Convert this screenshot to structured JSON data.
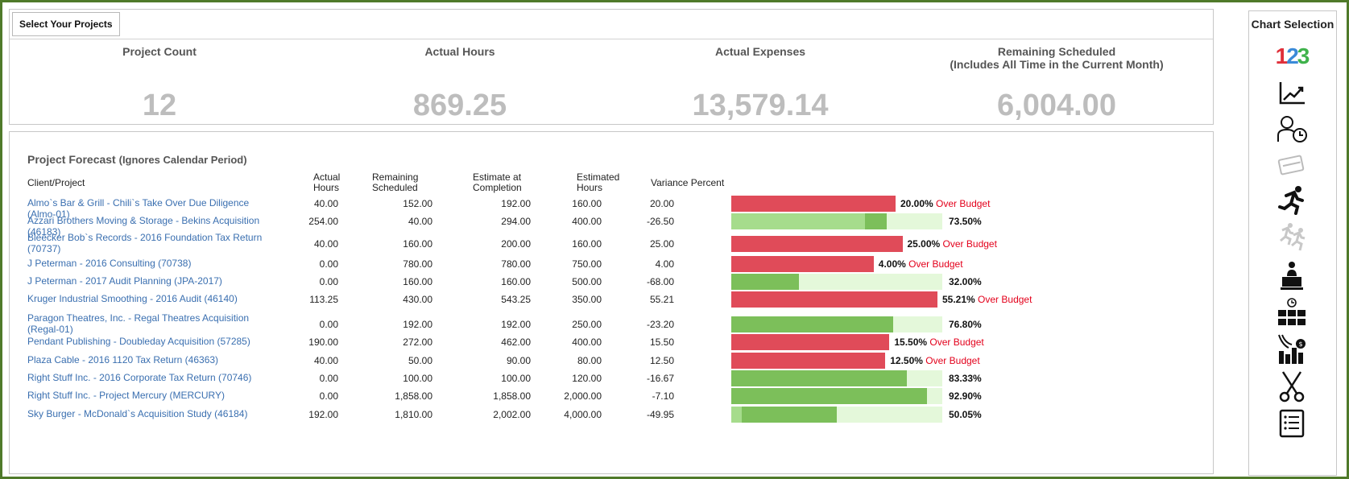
{
  "summary": {
    "select_button": "Select Your Projects",
    "metrics": [
      {
        "label": "Project Count",
        "value": "12"
      },
      {
        "label": "Actual Hours",
        "value": "869.25"
      },
      {
        "label": "Actual Expenses",
        "value": "13,579.14"
      },
      {
        "label": "Remaining Scheduled\n(Includes All Time in the Current Month)",
        "value": "6,004.00"
      }
    ]
  },
  "forecast": {
    "title": "Project Forecast",
    "subtitle": "(Ignores Calendar Period)",
    "headers": {
      "client_project": "Client/Project",
      "actual_hours": "Actual\nHours",
      "remaining_scheduled": "Remaining\nScheduled",
      "estimate_completion": "Estimate at\nCompletion",
      "estimated_hours": "Estimated\nHours",
      "variance_percent": "Variance Percent"
    },
    "over_budget_label": "Over Budget",
    "rows": [
      {
        "name": "Almo`s Bar & Grill - Chili`s Take Over Due Diligence (Almo-01)",
        "actual": "40.00",
        "remaining": "152.00",
        "eac": "192.00",
        "estimated": "160.00",
        "variance": "20.00",
        "pct_text": "20.00%",
        "over": true,
        "completion": 1.2,
        "actual_frac": 0.25
      },
      {
        "name": "Azzari Brothers Moving & Storage - Bekins Acquisition (46183)",
        "actual": "254.00",
        "remaining": "40.00",
        "eac": "294.00",
        "estimated": "400.00",
        "variance": "-26.50",
        "pct_text": "73.50%",
        "over": false,
        "completion": 0.735,
        "actual_frac": 0.635
      },
      {
        "name": "Bleecker Bob`s Records - 2016 Foundation Tax Return (70737)",
        "actual": "40.00",
        "remaining": "160.00",
        "eac": "200.00",
        "estimated": "160.00",
        "variance": "25.00",
        "pct_text": "25.00%",
        "over": true,
        "completion": 1.25,
        "actual_frac": 0.25
      },
      {
        "name": "J Peterman - 2016 Consulting (70738)",
        "actual": "0.00",
        "remaining": "780.00",
        "eac": "780.00",
        "estimated": "750.00",
        "variance": "4.00",
        "pct_text": "4.00%",
        "over": true,
        "completion": 1.04,
        "actual_frac": 0
      },
      {
        "name": "J Peterman - 2017 Audit Planning (JPA-2017)",
        "actual": "0.00",
        "remaining": "160.00",
        "eac": "160.00",
        "estimated": "500.00",
        "variance": "-68.00",
        "pct_text": "32.00%",
        "over": false,
        "completion": 0.32,
        "actual_frac": 0
      },
      {
        "name": "Kruger Industrial Smoothing - 2016 Audit (46140)",
        "actual": "113.25",
        "remaining": "430.00",
        "eac": "543.25",
        "estimated": "350.00",
        "variance": "55.21",
        "pct_text": "55.21%",
        "over": true,
        "completion": 1.5521,
        "actual_frac": 0.324
      },
      {
        "name": "Paragon Theatres, Inc. - Regal Theatres Acquisition (Regal-01)",
        "actual": "0.00",
        "remaining": "192.00",
        "eac": "192.00",
        "estimated": "250.00",
        "variance": "-23.20",
        "pct_text": "76.80%",
        "over": false,
        "completion": 0.768,
        "actual_frac": 0
      },
      {
        "name": "Pendant Publishing - Doubleday Acquisition (57285)",
        "actual": "190.00",
        "remaining": "272.00",
        "eac": "462.00",
        "estimated": "400.00",
        "variance": "15.50",
        "pct_text": "15.50%",
        "over": true,
        "completion": 1.155,
        "actual_frac": 0.475
      },
      {
        "name": "Plaza Cable - 2016 1120 Tax Return (46363)",
        "actual": "40.00",
        "remaining": "50.00",
        "eac": "90.00",
        "estimated": "80.00",
        "variance": "12.50",
        "pct_text": "12.50%",
        "over": true,
        "completion": 1.125,
        "actual_frac": 0.5
      },
      {
        "name": "Right Stuff Inc. - 2016 Corporate Tax Return (70746)",
        "actual": "0.00",
        "remaining": "100.00",
        "eac": "100.00",
        "estimated": "120.00",
        "variance": "-16.67",
        "pct_text": "83.33%",
        "over": false,
        "completion": 0.8333,
        "actual_frac": 0
      },
      {
        "name": "Right Stuff Inc. - Project Mercury (MERCURY)",
        "actual": "0.00",
        "remaining": "1,858.00",
        "eac": "1,858.00",
        "estimated": "2,000.00",
        "variance": "-7.10",
        "pct_text": "92.90%",
        "over": false,
        "completion": 0.929,
        "actual_frac": 0
      },
      {
        "name": "Sky Burger - McDonald`s Acquisition Study (46184)",
        "actual": "192.00",
        "remaining": "1,810.00",
        "eac": "2,002.00",
        "estimated": "4,000.00",
        "variance": "-49.95",
        "pct_text": "50.05%",
        "over": false,
        "completion": 0.5005,
        "actual_frac": 0.048
      }
    ]
  },
  "sidebar": {
    "title": "Chart Selection",
    "icon_123": {
      "one": "1",
      "two": "2",
      "three": "3"
    },
    "icons": [
      "numbers-icon",
      "line-chart-icon",
      "person-clock-icon",
      "payment-icon",
      "runner-icon",
      "runners-icon",
      "presenter-icon",
      "meeting-clock-icon",
      "bar-chart-dollar-icon",
      "scissors-icon",
      "list-icon"
    ]
  },
  "colors": {
    "over_budget_bar": "#e04b59",
    "under_track": "#e4f8da",
    "projected_bar": "#a6dc8c",
    "actual_bar": "#7cbf5a",
    "link": "#3a6fb0",
    "over_budget_text": "#e3001b",
    "frame": "#4f7a2a"
  }
}
